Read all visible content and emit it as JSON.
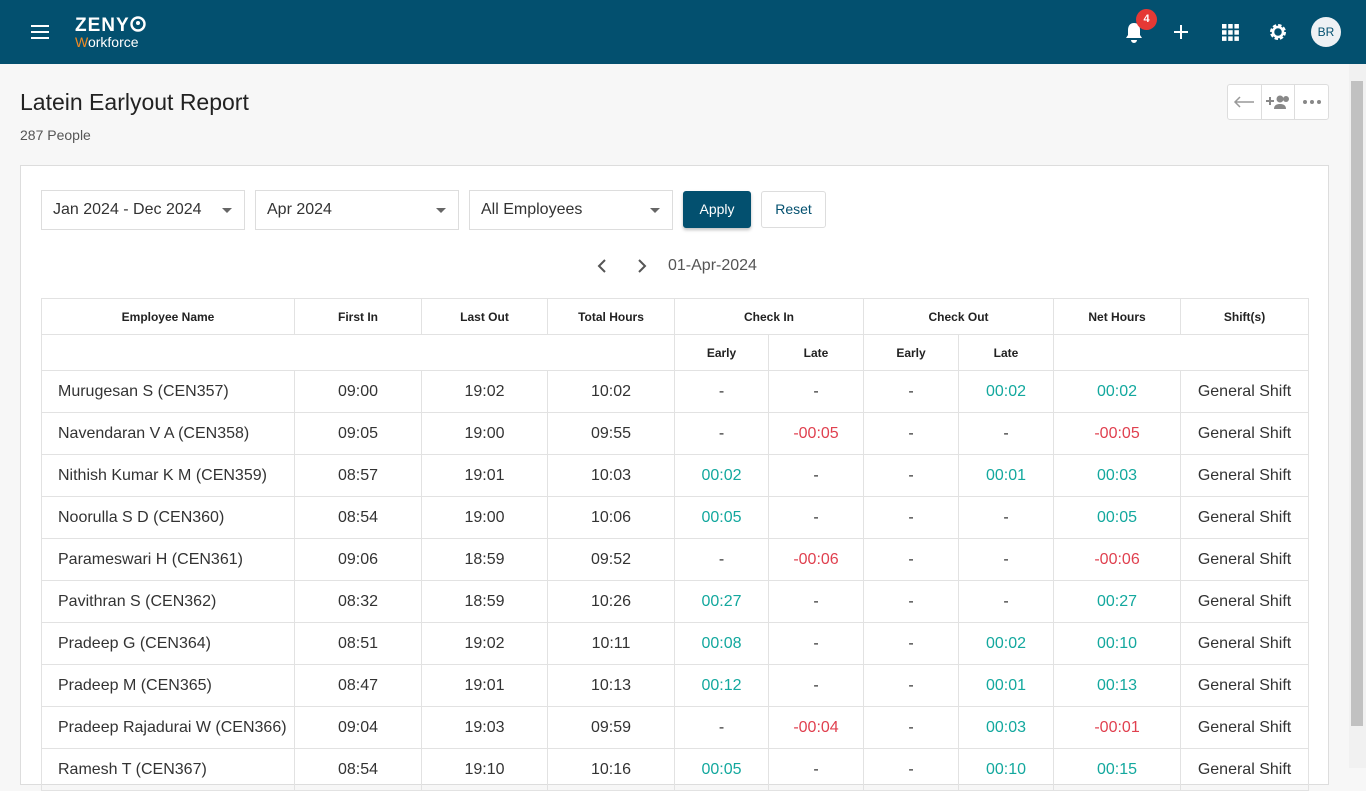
{
  "header": {
    "logo": "ZENY",
    "logo_sub": "Workforce",
    "notification_count": "4",
    "avatar": "BR"
  },
  "page": {
    "title": "Latein Earlyout Report",
    "subtitle": "287 People"
  },
  "filters": {
    "period": "Jan 2024 - Dec 2024",
    "month": "Apr 2024",
    "employees": "All Employees",
    "apply": "Apply",
    "reset": "Reset"
  },
  "date_nav": {
    "date": "01-Apr-2024"
  },
  "table": {
    "columns": [
      "Employee Name",
      "First In",
      "Last Out",
      "Total Hours",
      "Check In",
      "Check Out",
      "Net Hours",
      "Shift(s)"
    ],
    "subcolumns": [
      "Early",
      "Late",
      "Early",
      "Late"
    ],
    "rows": [
      [
        "Murugesan S (CEN357)",
        "09:00",
        "19:02",
        "10:02",
        "-",
        "-",
        "-",
        "00:02",
        "00:02",
        "General Shift"
      ],
      [
        "Navendaran V A (CEN358)",
        "09:05",
        "19:00",
        "09:55",
        "-",
        "-00:05",
        "-",
        "-",
        "-00:05",
        "General Shift"
      ],
      [
        "Nithish Kumar K M (CEN359)",
        "08:57",
        "19:01",
        "10:03",
        "00:02",
        "-",
        "-",
        "00:01",
        "00:03",
        "General Shift"
      ],
      [
        "Noorulla S D (CEN360)",
        "08:54",
        "19:00",
        "10:06",
        "00:05",
        "-",
        "-",
        "-",
        "00:05",
        "General Shift"
      ],
      [
        "Parameswari H (CEN361)",
        "09:06",
        "18:59",
        "09:52",
        "-",
        "-00:06",
        "-",
        "-",
        "-00:06",
        "General Shift"
      ],
      [
        "Pavithran S (CEN362)",
        "08:32",
        "18:59",
        "10:26",
        "00:27",
        "-",
        "-",
        "-",
        "00:27",
        "General Shift"
      ],
      [
        "Pradeep G (CEN364)",
        "08:51",
        "19:02",
        "10:11",
        "00:08",
        "-",
        "-",
        "00:02",
        "00:10",
        "General Shift"
      ],
      [
        "Pradeep M (CEN365)",
        "08:47",
        "19:01",
        "10:13",
        "00:12",
        "-",
        "-",
        "00:01",
        "00:13",
        "General Shift"
      ],
      [
        "Pradeep Rajadurai W (CEN366)",
        "09:04",
        "19:03",
        "09:59",
        "-",
        "-00:04",
        "-",
        "00:03",
        "-00:01",
        "General Shift"
      ],
      [
        "Ramesh T (CEN367)",
        "08:54",
        "19:10",
        "10:16",
        "00:05",
        "-",
        "-",
        "00:10",
        "00:15",
        "General Shift"
      ]
    ]
  }
}
